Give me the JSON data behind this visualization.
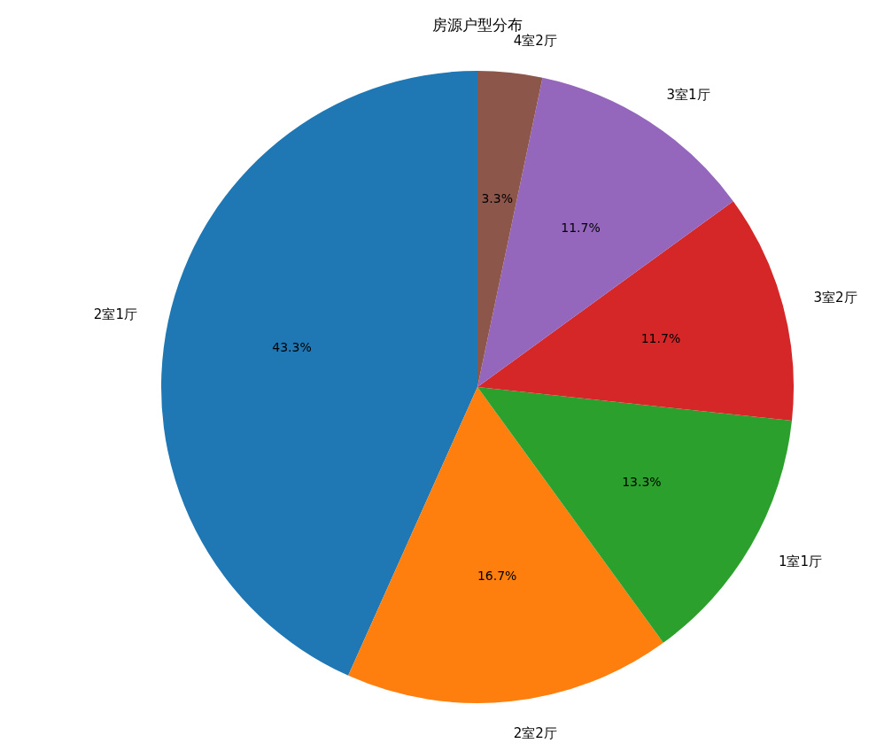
{
  "chart_data": {
    "type": "pie",
    "title": "房源户型分布",
    "categories": [
      "2室1厅",
      "2室2厅",
      "1室1厅",
      "3室2厅",
      "3室1厅",
      "4室2厅"
    ],
    "values": [
      43.3,
      16.7,
      13.3,
      11.7,
      11.7,
      3.3
    ],
    "colors": [
      "#1f77b4",
      "#ff7f0e",
      "#2ca02c",
      "#d62728",
      "#9467bd",
      "#8c564b"
    ],
    "value_labels": [
      "43.3%",
      "16.7%",
      "13.3%",
      "11.7%",
      "11.7%",
      "3.3%"
    ]
  }
}
